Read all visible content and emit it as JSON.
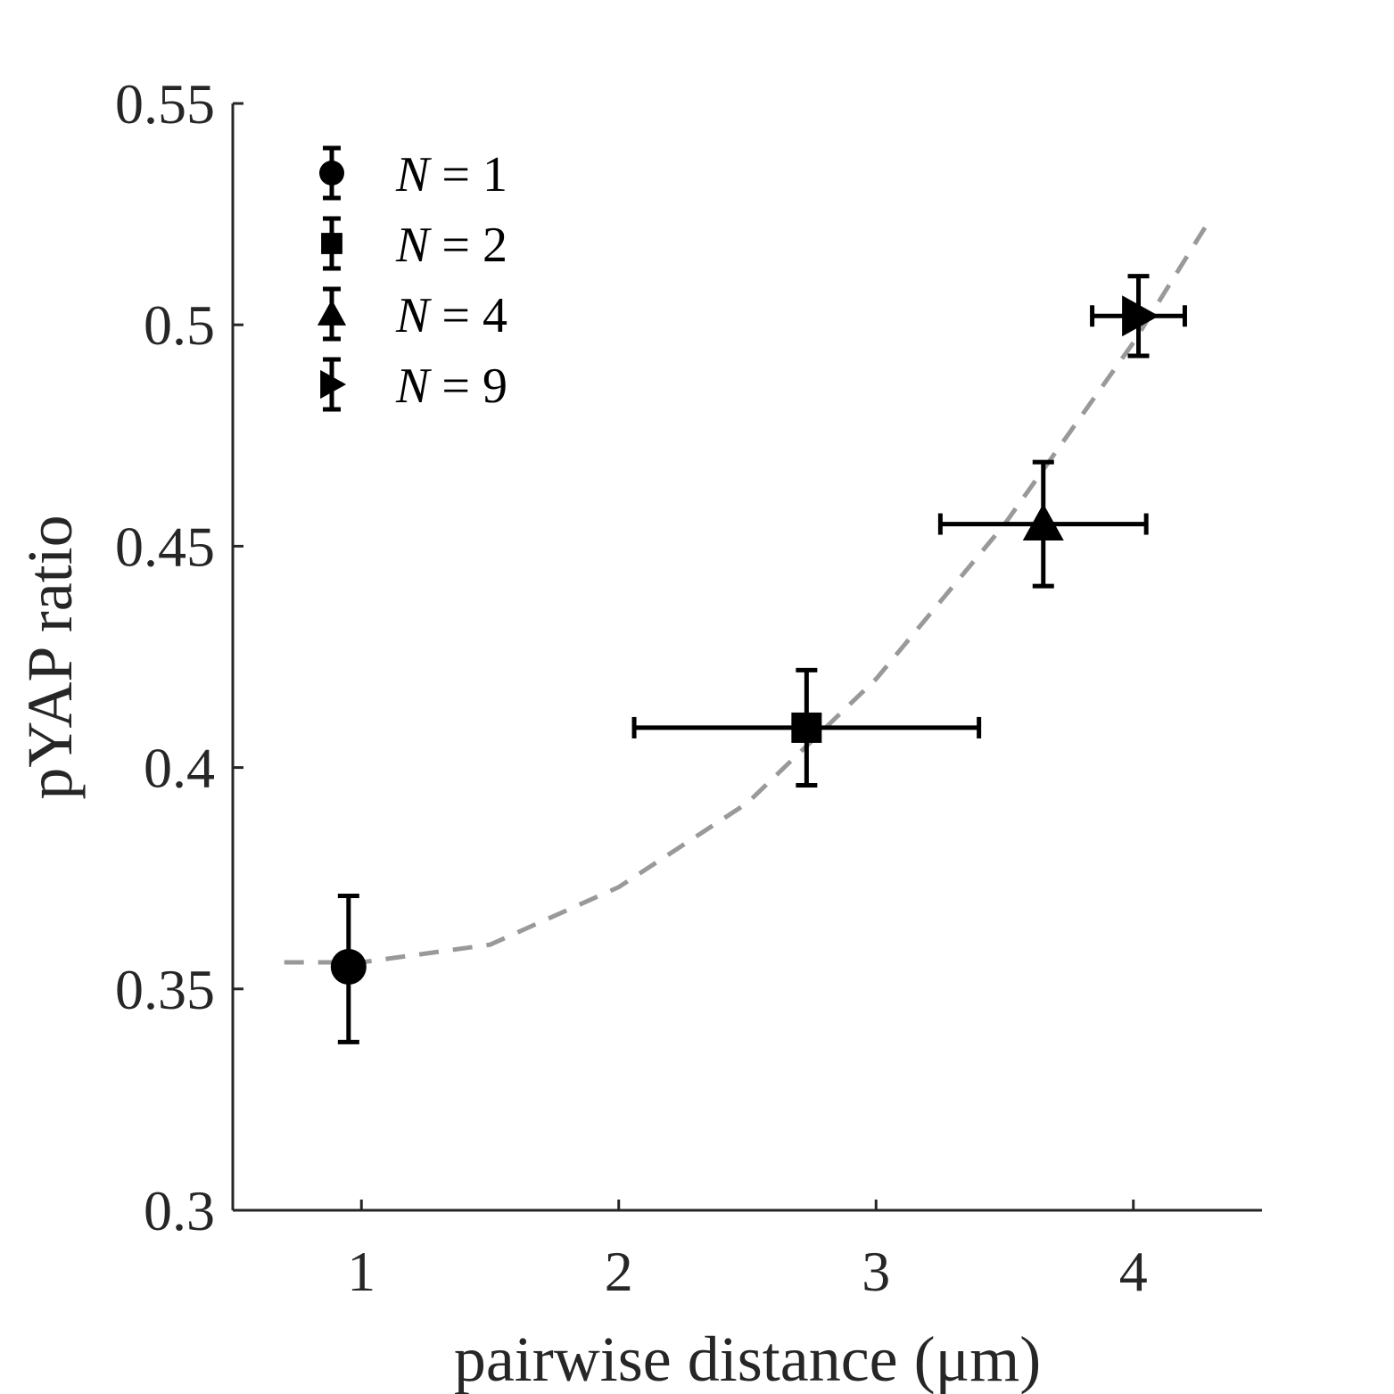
{
  "chart_data": {
    "type": "scatter",
    "xlabel": "pairwise distance (μm)",
    "ylabel": "pYAP ratio",
    "xlim": [
      0.5,
      4.5
    ],
    "ylim": [
      0.3,
      0.55
    ],
    "xticks": [
      1,
      2,
      3,
      4
    ],
    "yticks": [
      0.3,
      0.35,
      0.4,
      0.45,
      0.5,
      0.55
    ],
    "xtick_labels": [
      "1",
      "2",
      "3",
      "4"
    ],
    "ytick_labels": [
      "0.3",
      "0.35",
      "0.4",
      "0.45",
      "0.5",
      "0.55"
    ],
    "legend_position": "top-left",
    "series": [
      {
        "name": "N = 1",
        "marker": "circle",
        "x": 0.95,
        "y": 0.355,
        "xerr": 0.0,
        "yerr_low": 0.017,
        "yerr_high": 0.016
      },
      {
        "name": "N = 2",
        "marker": "square",
        "x": 2.73,
        "y": 0.409,
        "xerr_low": 0.67,
        "xerr_high": 0.67,
        "yerr_low": 0.013,
        "yerr_high": 0.013
      },
      {
        "name": "N = 4",
        "marker": "triangle-up",
        "x": 3.65,
        "y": 0.455,
        "xerr_low": 0.4,
        "xerr_high": 0.4,
        "yerr_low": 0.014,
        "yerr_high": 0.014
      },
      {
        "name": "N = 9",
        "marker": "triangle-right",
        "x": 4.02,
        "y": 0.502,
        "xerr_low": 0.18,
        "xerr_high": 0.18,
        "yerr_low": 0.009,
        "yerr_high": 0.009
      }
    ],
    "fit_curve": {
      "style": "dashed",
      "color": "#999999",
      "x": [
        0.7,
        1.0,
        1.5,
        2.0,
        2.5,
        3.0,
        3.5,
        4.0,
        4.3
      ],
      "y": [
        0.356,
        0.356,
        0.36,
        0.373,
        0.392,
        0.42,
        0.455,
        0.496,
        0.524
      ]
    }
  }
}
